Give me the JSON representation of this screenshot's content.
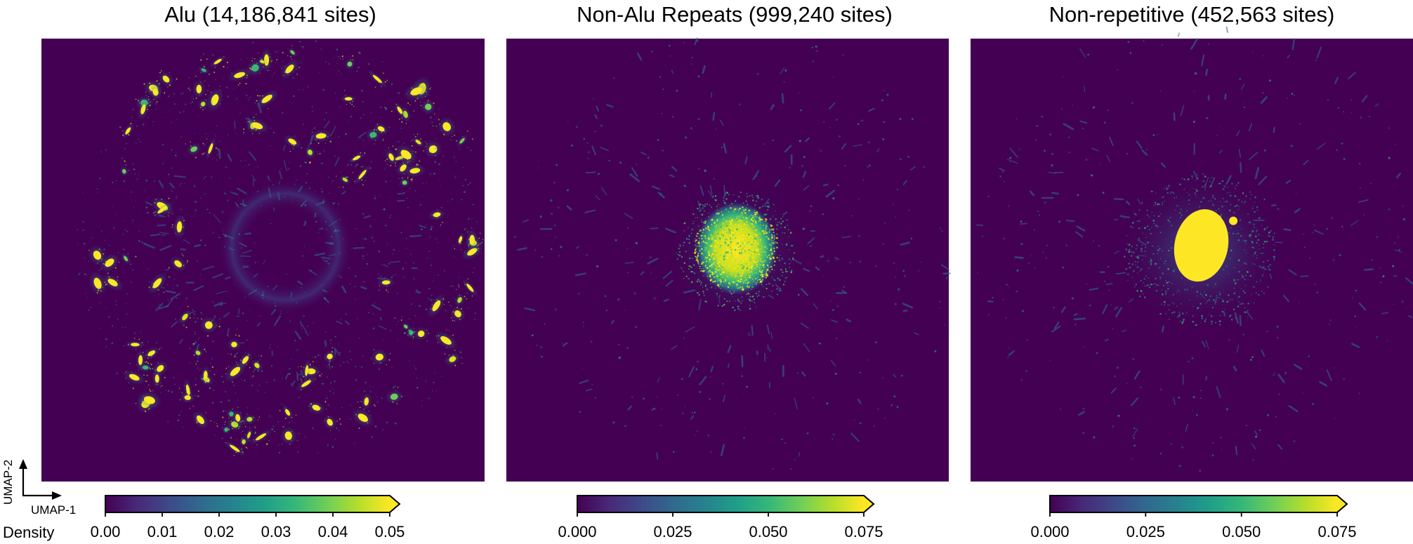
{
  "figure": {
    "colormap": "viridis",
    "colormap_stops": [
      "#440154",
      "#482878",
      "#3e4989",
      "#31688e",
      "#26828e",
      "#1f9e89",
      "#35b779",
      "#6ece58",
      "#b5de2b",
      "#fde725"
    ],
    "background_color": "#440154",
    "colorbar_label": "Density",
    "axis_x_label": "UMAP-1",
    "axis_y_label": "UMAP-2"
  },
  "chart_data": [
    {
      "type": "heatmap",
      "title": "Alu (14,186,841 sites)",
      "pattern": "many-scattered-clusters-ring",
      "colorbar": {
        "min": 0.0,
        "max": 0.05,
        "extend": "max",
        "ticks": [
          0.0,
          0.01,
          0.02,
          0.03,
          0.04,
          0.05
        ],
        "tick_labels": [
          "0.00",
          "0.01",
          "0.02",
          "0.03",
          "0.04",
          "0.05"
        ]
      }
    },
    {
      "type": "heatmap",
      "title": "Non-Alu Repeats (999,240 sites)",
      "pattern": "central-dense-blob",
      "colorbar": {
        "min": 0.0,
        "max": 0.075,
        "extend": "max",
        "ticks": [
          0.0,
          0.025,
          0.05,
          0.075
        ],
        "tick_labels": [
          "0.000",
          "0.025",
          "0.050",
          "0.075"
        ]
      }
    },
    {
      "type": "heatmap",
      "title": "Non-repetitive (452,563 sites)",
      "pattern": "central-elongated-saturated-blob",
      "colorbar": {
        "min": 0.0,
        "max": 0.075,
        "extend": "max",
        "ticks": [
          0.0,
          0.025,
          0.05,
          0.075
        ],
        "tick_labels": [
          "0.000",
          "0.025",
          "0.050",
          "0.075"
        ]
      }
    }
  ]
}
